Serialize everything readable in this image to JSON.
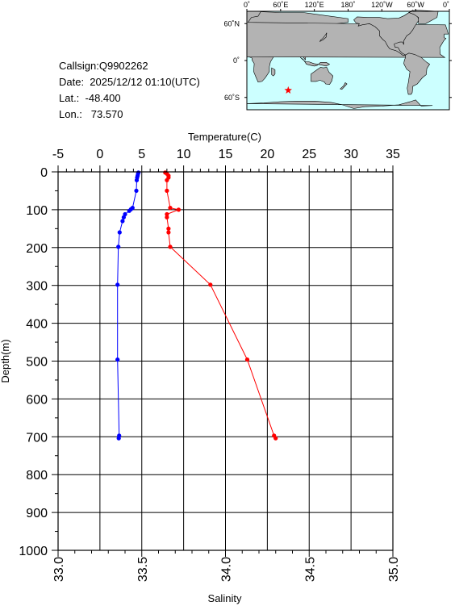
{
  "info": {
    "callsign": "Callsign:Q9902262",
    "date": "Date:  2025/12/12 01:10(UTC)",
    "lat": "Lat.:  -48.400",
    "lon": "Lon.:   73.570"
  },
  "map": {
    "lon_labels": [
      "0˚",
      "60˚E",
      "120˚E",
      "180˚",
      "120˚W",
      "60˚W",
      "0˚"
    ],
    "lat_labels": [
      "60˚N",
      "0˚",
      "60˚S"
    ],
    "station": {
      "lon": 73.57,
      "lat": -48.4
    },
    "colors": {
      "ocean": "#ccffff",
      "land": "#b3b3b3",
      "marker": "#ff0000"
    }
  },
  "chart_data": {
    "type": "line",
    "temperature_axis": {
      "label": "Temperature(C)",
      "range": [
        -5,
        35
      ],
      "ticks": [
        "-5",
        "0",
        "5",
        "10",
        "15",
        "20",
        "25",
        "30",
        "35"
      ]
    },
    "salinity_axis": {
      "label": "Salinity",
      "range": [
        33.0,
        35.0
      ],
      "ticks": [
        "33.0",
        "33.5",
        "34.0",
        "34.5",
        "35.0"
      ]
    },
    "depth_axis": {
      "label": "Depth(m)",
      "range": [
        0,
        1000
      ],
      "ticks": [
        "0",
        "100",
        "200",
        "300",
        "400",
        "500",
        "600",
        "700",
        "800",
        "900",
        "1000"
      ]
    },
    "grid": true,
    "series": [
      {
        "color": "#0000ff",
        "axis": "temperature",
        "points": [
          [
            4.6,
            2
          ],
          [
            4.55,
            5
          ],
          [
            4.5,
            10
          ],
          [
            4.45,
            15
          ],
          [
            4.4,
            22
          ],
          [
            4.35,
            50
          ],
          [
            3.9,
            95
          ],
          [
            3.7,
            99
          ],
          [
            3.5,
            103
          ],
          [
            3.0,
            112
          ],
          [
            2.85,
            120
          ],
          [
            2.7,
            130
          ],
          [
            2.35,
            160
          ],
          [
            2.2,
            198
          ],
          [
            2.1,
            298
          ],
          [
            2.1,
            496
          ],
          [
            2.3,
            697
          ],
          [
            2.25,
            704
          ]
        ]
      },
      {
        "color": "#ff0000",
        "axis": "salinity",
        "points": [
          [
            33.64,
            2
          ],
          [
            33.65,
            5
          ],
          [
            33.66,
            10
          ],
          [
            33.66,
            15
          ],
          [
            33.65,
            22
          ],
          [
            33.65,
            50
          ],
          [
            33.67,
            95
          ],
          [
            33.72,
            100
          ],
          [
            33.65,
            112
          ],
          [
            33.65,
            120
          ],
          [
            33.66,
            150
          ],
          [
            33.66,
            160
          ],
          [
            33.67,
            198
          ],
          [
            33.91,
            298
          ],
          [
            34.13,
            496
          ],
          [
            34.29,
            697
          ],
          [
            34.3,
            704
          ]
        ]
      }
    ]
  }
}
